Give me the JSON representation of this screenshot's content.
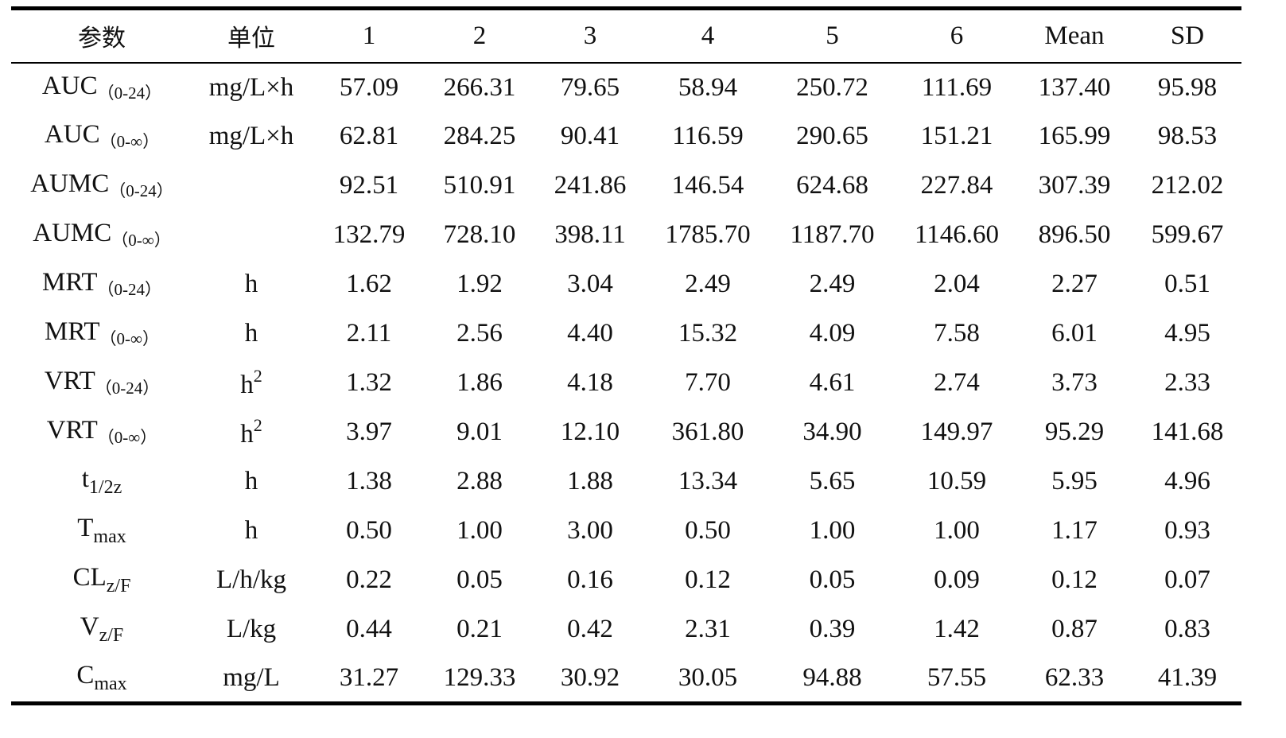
{
  "table": {
    "headers": [
      "参数",
      "单位",
      "1",
      "2",
      "3",
      "4",
      "5",
      "6",
      "Mean",
      "SD"
    ],
    "rows": [
      {
        "param": {
          "base": "AUC",
          "qual": "（0-24）",
          "style": "paren"
        },
        "unit": {
          "base": "mg/L×h"
        },
        "values": [
          "57.09",
          "266.31",
          "79.65",
          "58.94",
          "250.72",
          "111.69",
          "137.40",
          "95.98"
        ]
      },
      {
        "param": {
          "base": "AUC",
          "qual": "（0-∞）",
          "style": "paren"
        },
        "unit": {
          "base": "mg/L×h"
        },
        "values": [
          "62.81",
          "284.25",
          "90.41",
          "116.59",
          "290.65",
          "151.21",
          "165.99",
          "98.53"
        ]
      },
      {
        "param": {
          "base": "AUMC",
          "qual": "（0-24）",
          "style": "paren"
        },
        "unit": {
          "base": ""
        },
        "values": [
          "92.51",
          "510.91",
          "241.86",
          "146.54",
          "624.68",
          "227.84",
          "307.39",
          "212.02"
        ]
      },
      {
        "param": {
          "base": "AUMC",
          "qual": "（0-∞）",
          "style": "paren"
        },
        "unit": {
          "base": ""
        },
        "values": [
          "132.79",
          "728.10",
          "398.11",
          "1785.70",
          "1187.70",
          "1146.60",
          "896.50",
          "599.67"
        ]
      },
      {
        "param": {
          "base": "MRT",
          "qual": "（0-24）",
          "style": "paren"
        },
        "unit": {
          "base": "h"
        },
        "values": [
          "1.62",
          "1.92",
          "3.04",
          "2.49",
          "2.49",
          "2.04",
          "2.27",
          "0.51"
        ]
      },
      {
        "param": {
          "base": "MRT",
          "qual": "（0-∞）",
          "style": "paren"
        },
        "unit": {
          "base": "h"
        },
        "values": [
          "2.11",
          "2.56",
          "4.40",
          "15.32",
          "4.09",
          "7.58",
          "6.01",
          "4.95"
        ]
      },
      {
        "param": {
          "base": "VRT",
          "qual": "（0-24）",
          "style": "paren"
        },
        "unit": {
          "base": "h",
          "sup": "2"
        },
        "values": [
          "1.32",
          "1.86",
          "4.18",
          "7.70",
          "4.61",
          "2.74",
          "3.73",
          "2.33"
        ]
      },
      {
        "param": {
          "base": "VRT",
          "qual": "（0-∞）",
          "style": "paren"
        },
        "unit": {
          "base": "h",
          "sup": "2"
        },
        "values": [
          "3.97",
          "9.01",
          "12.10",
          "361.80",
          "34.90",
          "149.97",
          "95.29",
          "141.68"
        ]
      },
      {
        "param": {
          "base": "t",
          "qual": "1/2z",
          "style": "sub"
        },
        "unit": {
          "base": "h"
        },
        "values": [
          "1.38",
          "2.88",
          "1.88",
          "13.34",
          "5.65",
          "10.59",
          "5.95",
          "4.96"
        ]
      },
      {
        "param": {
          "base": "T",
          "qual": "max",
          "style": "sub"
        },
        "unit": {
          "base": "h"
        },
        "values": [
          "0.50",
          "1.00",
          "3.00",
          "0.50",
          "1.00",
          "1.00",
          "1.17",
          "0.93"
        ]
      },
      {
        "param": {
          "base": "CL",
          "qual": "z/F",
          "style": "sub"
        },
        "unit": {
          "base": "L/h/kg"
        },
        "values": [
          "0.22",
          "0.05",
          "0.16",
          "0.12",
          "0.05",
          "0.09",
          "0.12",
          "0.07"
        ]
      },
      {
        "param": {
          "base": "V",
          "qual": "z/F",
          "style": "sub"
        },
        "unit": {
          "base": "L/kg"
        },
        "values": [
          "0.44",
          "0.21",
          "0.42",
          "2.31",
          "0.39",
          "1.42",
          "0.87",
          "0.83"
        ]
      },
      {
        "param": {
          "base": "C",
          "qual": "max",
          "style": "sub"
        },
        "unit": {
          "base": "mg/L"
        },
        "values": [
          "31.27",
          "129.33",
          "30.92",
          "30.05",
          "94.88",
          "57.55",
          "62.33",
          "41.39"
        ]
      }
    ]
  }
}
